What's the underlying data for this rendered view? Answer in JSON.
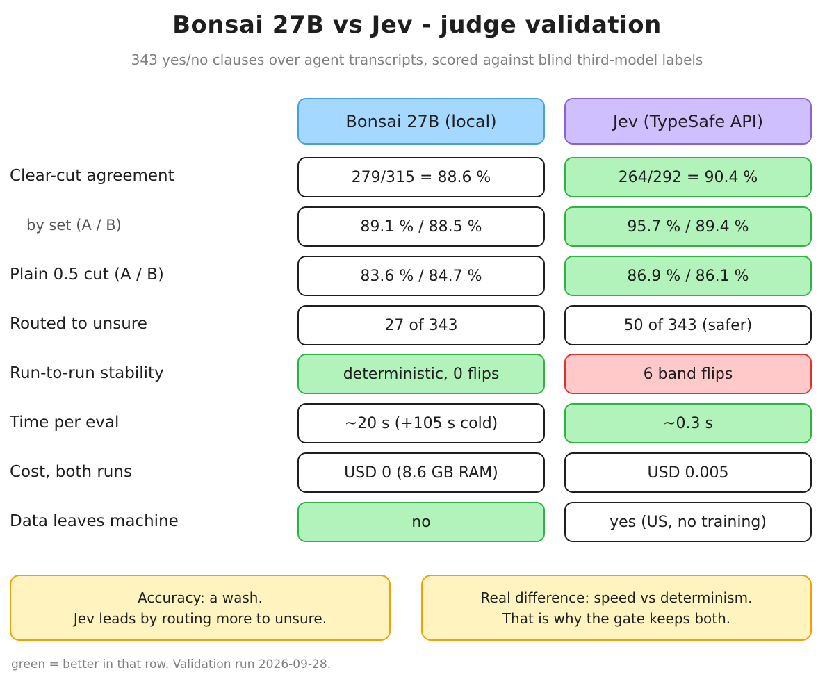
{
  "title": "Bonsai 27B vs Jev - judge validation",
  "subtitle": "343 yes/no clauses over agent transcripts, scored against blind third-model labels",
  "columns": [
    {
      "label": "Bonsai 27B (local)",
      "color": "#a5d8ff"
    },
    {
      "label": "Jev (TypeSafe API)",
      "color": "#d0bfff"
    }
  ],
  "rows": [
    {
      "label": "Clear-cut agreement",
      "a": "279/315 = 88.6 %",
      "b": "264/292 = 90.4 %"
    },
    {
      "label": "by set (A / B)",
      "a": "89.1 % / 88.5 %",
      "b": "95.7 % / 89.4 %"
    },
    {
      "label": "Plain 0.5 cut (A / B)",
      "a": "83.6 % / 84.7 %",
      "b": "86.9 % / 86.1 %"
    },
    {
      "label": "Routed to unsure",
      "a": "27 of 343",
      "b": "50 of 343 (safer)"
    },
    {
      "label": "Run-to-run stability",
      "a": "deterministic, 0 flips",
      "b": "6 band flips"
    },
    {
      "label": "Time per eval",
      "a": "~20 s (+105 s cold)",
      "b": "~0.3 s"
    },
    {
      "label": "Cost, both runs",
      "a": "USD 0 (8.6 GB RAM)",
      "b": "USD 0.005"
    },
    {
      "label": "Data leaves machine",
      "a": "no",
      "b": "yes (US, no training)"
    }
  ],
  "notes": [
    {
      "line1": "Accuracy: a wash.",
      "line2": "Jev leads by routing more to unsure."
    },
    {
      "line1": "Real difference: speed vs determinism.",
      "line2": "That is why the gate keeps both."
    }
  ],
  "footer": "green = better in that row. Validation run 2026-09-28.",
  "colors": {
    "better": "#b2f2bb",
    "worse": "#ffc9c9",
    "note": "#fff3bf"
  }
}
